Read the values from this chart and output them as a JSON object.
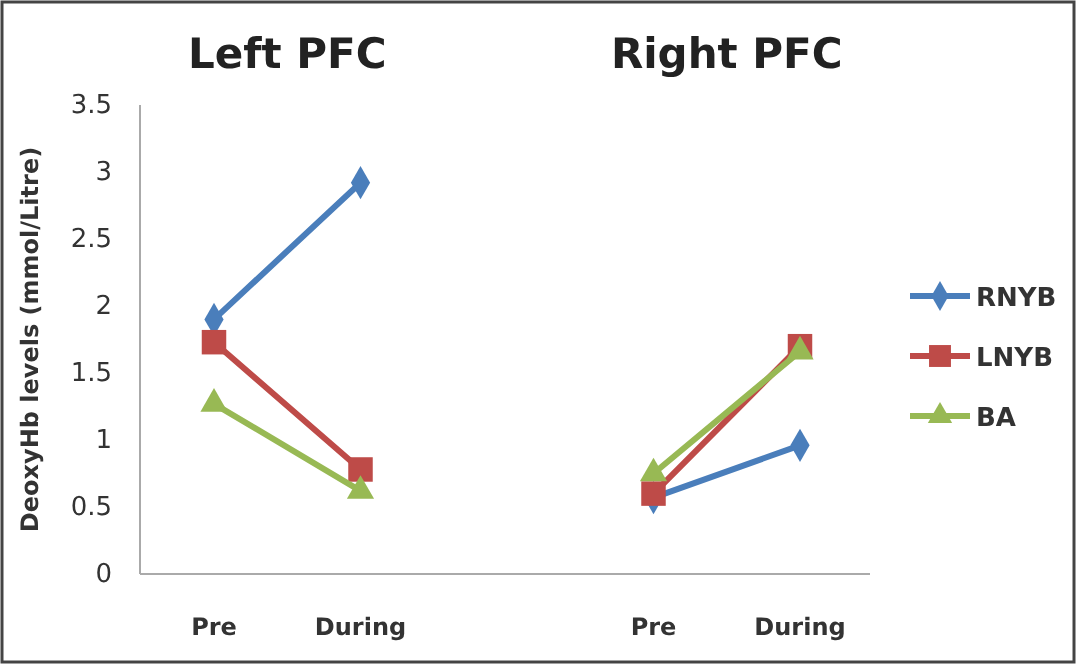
{
  "chart_data": {
    "type": "line",
    "ylabel": "DeoxyHb levels (mmol/Litre)",
    "categories": [
      "Pre",
      "During",
      null,
      "Pre",
      "During"
    ],
    "series": [
      {
        "name": "RNYB",
        "color": "#4a7ebb",
        "values": [
          1.9,
          2.92,
          null,
          0.57,
          0.96
        ],
        "marker": "diamond"
      },
      {
        "name": "LNYB",
        "color": "#be4b48",
        "values": [
          1.73,
          0.78,
          null,
          0.6,
          1.7
        ],
        "marker": "square"
      },
      {
        "name": "BA",
        "color": "#98b954",
        "values": [
          1.27,
          0.62,
          null,
          0.75,
          1.66
        ],
        "marker": "triangle"
      }
    ],
    "ylim": [
      0,
      3.5
    ],
    "yticks": [
      0,
      0.5,
      1,
      1.5,
      2,
      2.5,
      3,
      3.5
    ],
    "annotations": [
      "Left PFC",
      "Right PFC"
    ],
    "legend": "right",
    "grid": false
  }
}
